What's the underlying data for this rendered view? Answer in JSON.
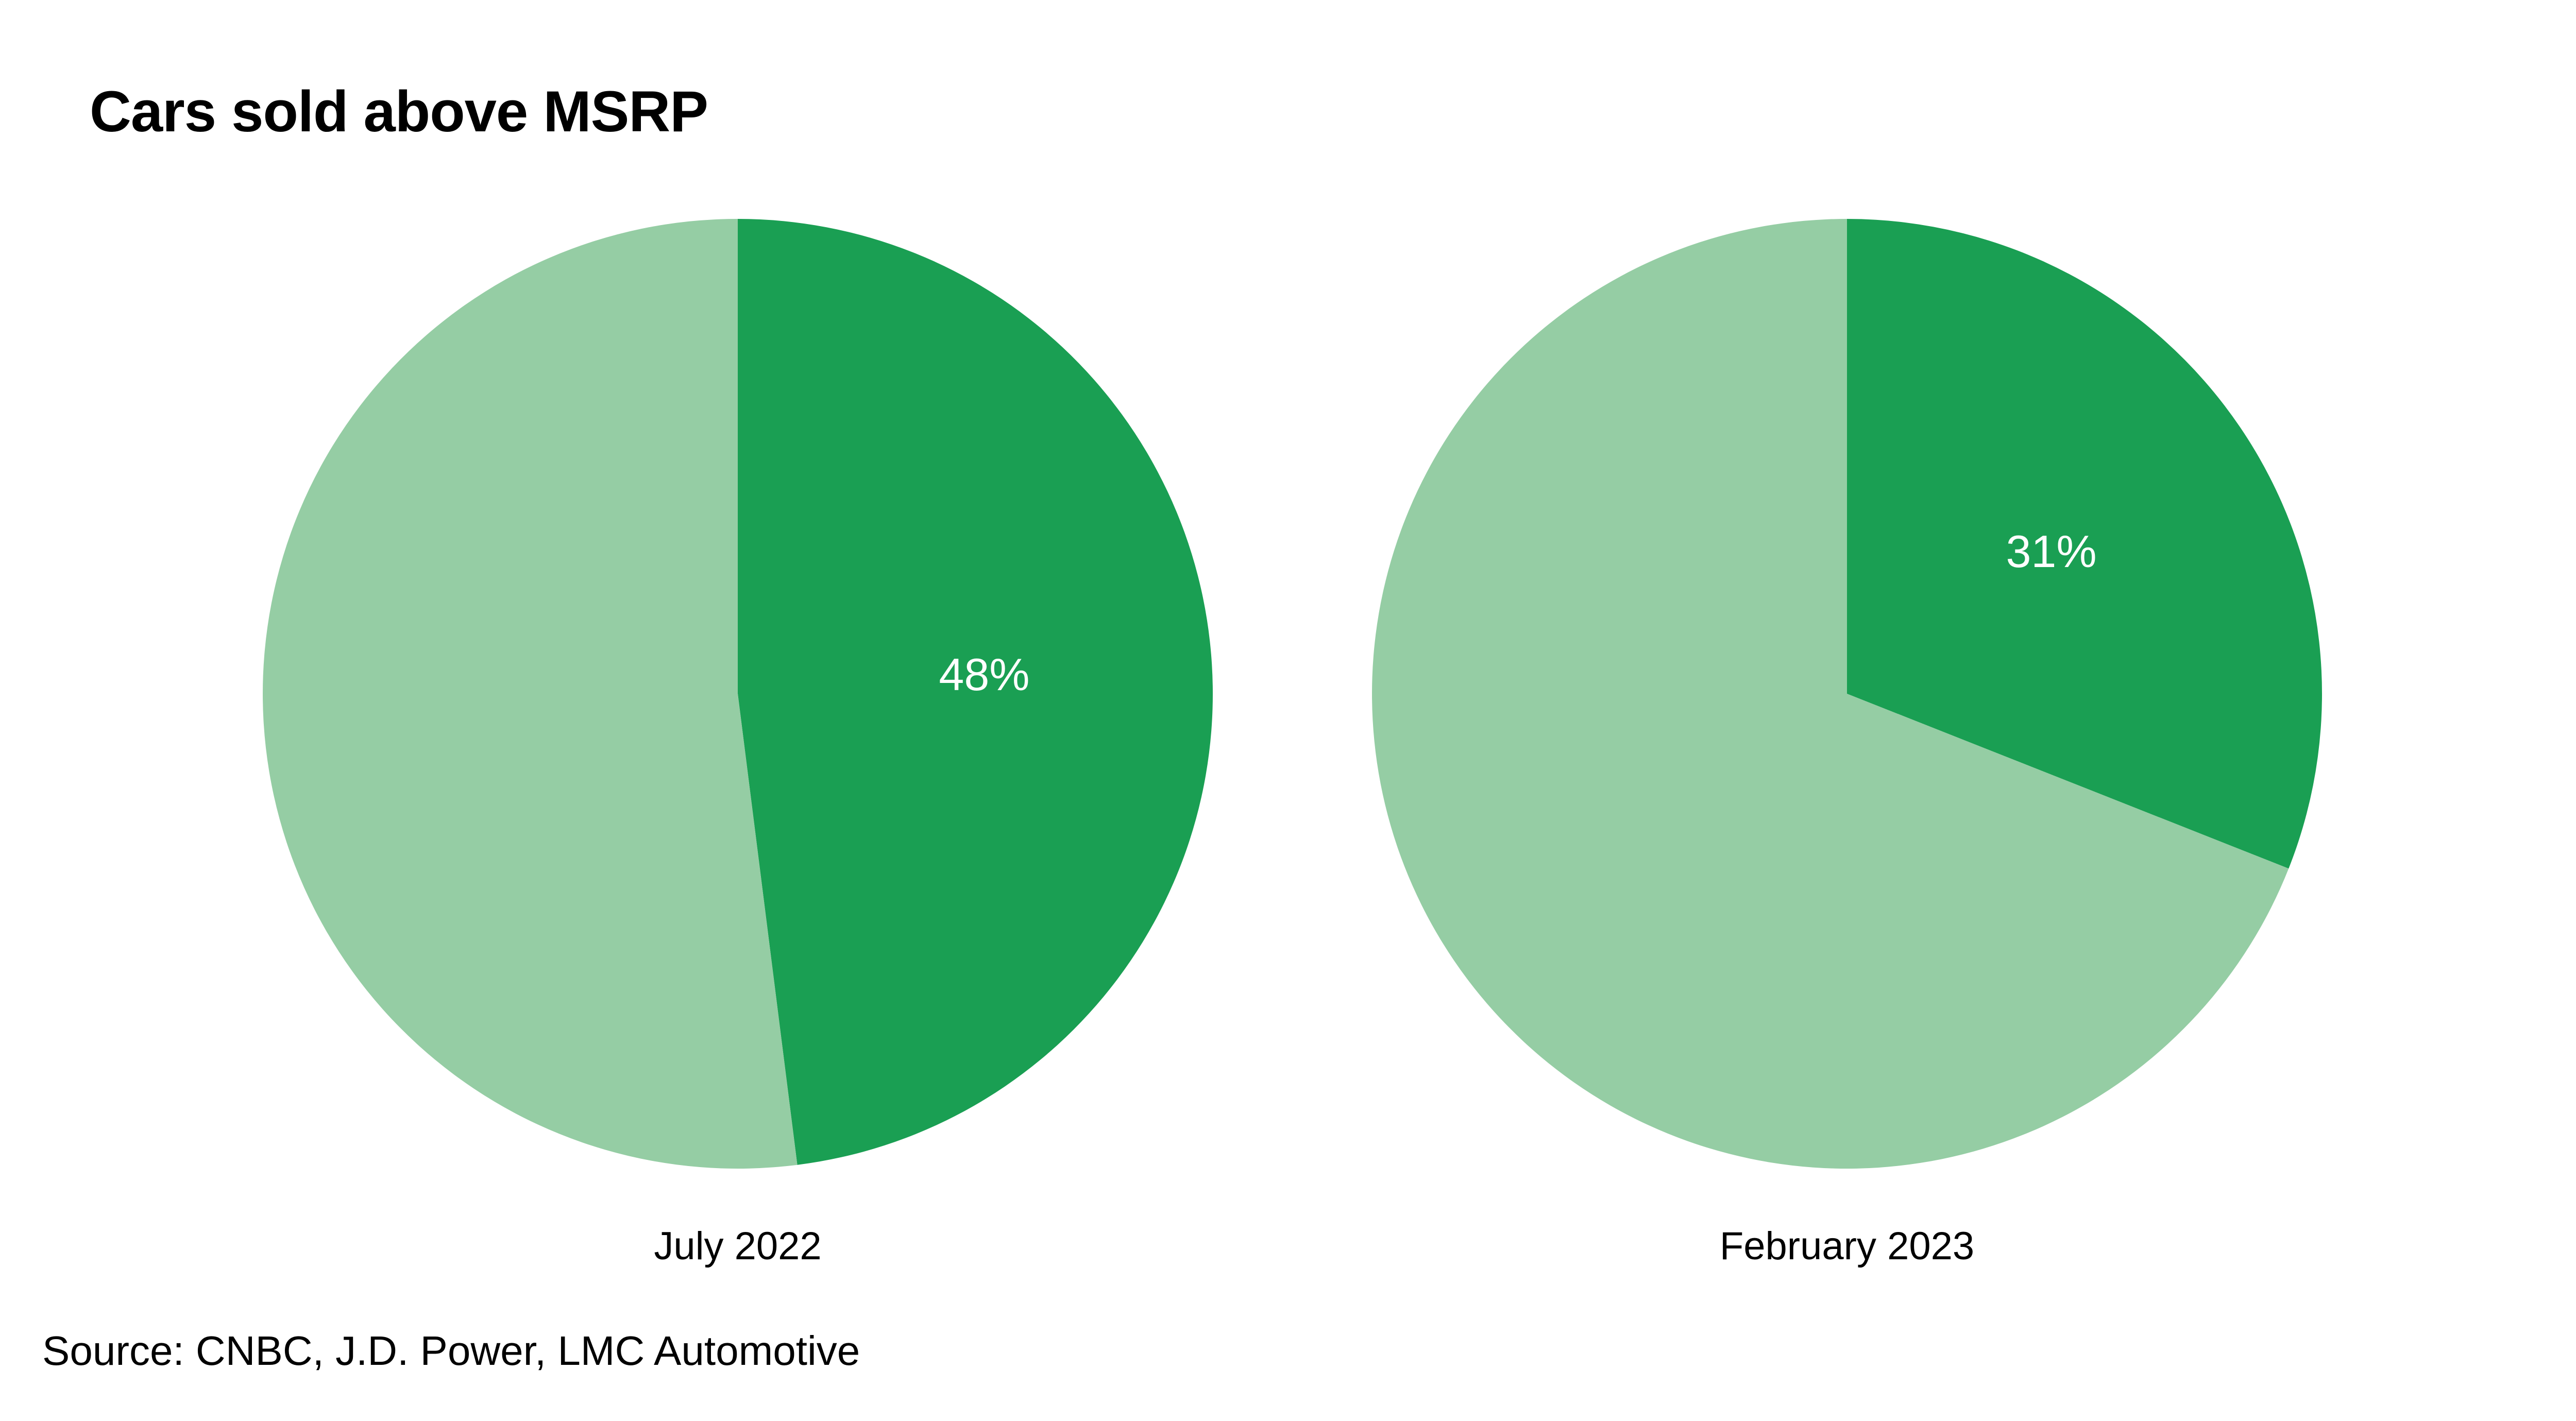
{
  "title": "Cars sold above MSRP",
  "source": "Source: CNBC, J.D. Power, LMC Automotive",
  "colors": {
    "highlight": "#1a9f53",
    "remainder": "#95cda4",
    "label_text": "#ffffff",
    "text": "#000000"
  },
  "chart_data": [
    {
      "type": "pie",
      "label": "July 2022",
      "slices": [
        {
          "value": 48,
          "label": "48%",
          "color": "#1a9f53"
        },
        {
          "value": 52,
          "label": "",
          "color": "#95cda4"
        }
      ]
    },
    {
      "type": "pie",
      "label": "February 2023",
      "slices": [
        {
          "value": 31,
          "label": "31%",
          "color": "#1a9f53"
        },
        {
          "value": 69,
          "label": "",
          "color": "#95cda4"
        }
      ]
    }
  ]
}
